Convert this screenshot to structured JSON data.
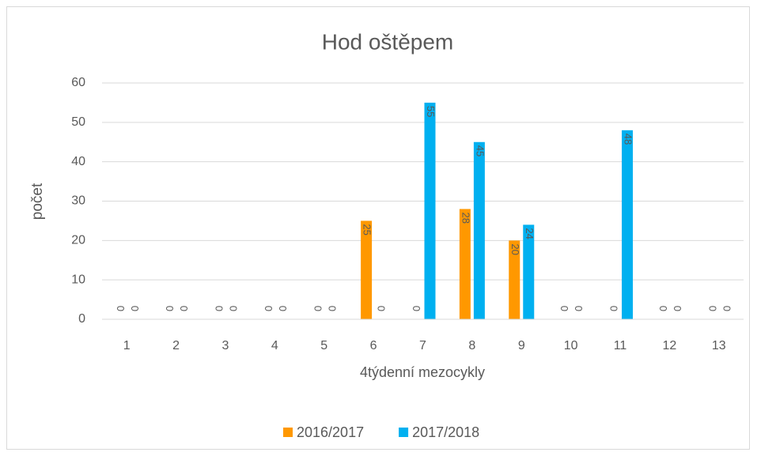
{
  "chart_data": {
    "type": "bar",
    "title": "Hod oštěpem",
    "x_label": "4týdenní mezocykly",
    "y_label": "počet",
    "categories": [
      "1",
      "2",
      "3",
      "4",
      "5",
      "6",
      "7",
      "8",
      "9",
      "10",
      "11",
      "12",
      "13"
    ],
    "series": [
      {
        "name": "2016/2017",
        "color": "#ff9800",
        "values": [
          0,
          0,
          0,
          0,
          0,
          25,
          0,
          28,
          20,
          0,
          0,
          0,
          0
        ]
      },
      {
        "name": "2017/2018",
        "color": "#00b0f0",
        "values": [
          0,
          0,
          0,
          0,
          0,
          0,
          55,
          45,
          24,
          0,
          48,
          0,
          0
        ]
      }
    ],
    "ylim": [
      0,
      60
    ],
    "yticks": [
      0,
      10,
      20,
      30,
      40,
      50,
      60
    ],
    "grid": true,
    "legend": "bottom"
  }
}
